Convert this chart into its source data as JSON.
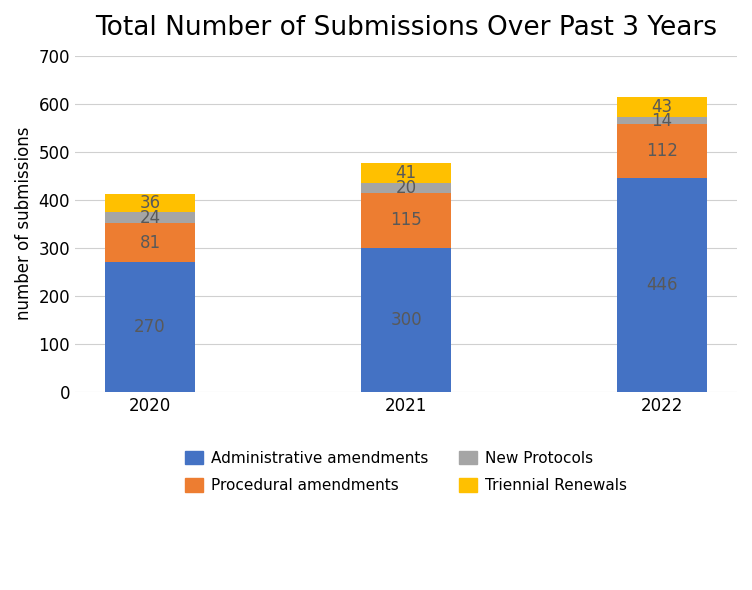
{
  "title": "Total Number of Submissions Over Past 3 Years",
  "ylabel": "number of submissions",
  "categories": [
    "2020",
    "2021",
    "2022"
  ],
  "series": {
    "Administrative amendments": [
      270,
      300,
      446
    ],
    "Procedural amendments": [
      81,
      115,
      112
    ],
    "New Protocols": [
      24,
      20,
      14
    ],
    "Triennial Renewals": [
      36,
      41,
      43
    ]
  },
  "colors": {
    "Administrative amendments": "#4472C4",
    "Procedural amendments": "#ED7D31",
    "New Protocols": "#A5A5A5",
    "Triennial Renewals": "#FFC000"
  },
  "ylim": [
    0,
    700
  ],
  "yticks": [
    0,
    100,
    200,
    300,
    400,
    500,
    600,
    700
  ],
  "bar_width": 0.35,
  "background_color": "#ffffff",
  "title_fontsize": 19,
  "label_fontsize": 12,
  "tick_fontsize": 12,
  "value_label_color": "#595959",
  "value_label_fontsize": 12,
  "legend_fontsize": 11,
  "legend_order": [
    "Administrative amendments",
    "Procedural amendments",
    "New Protocols",
    "Triennial Renewals"
  ]
}
